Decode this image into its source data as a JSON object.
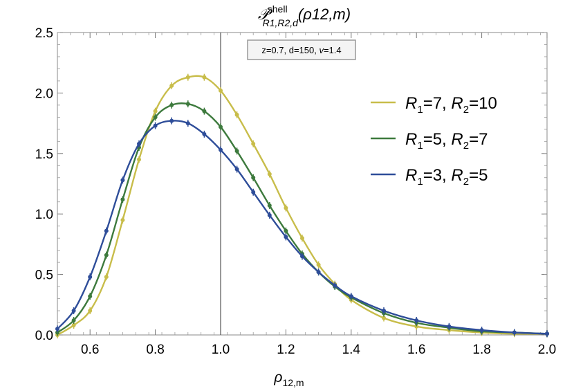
{
  "chart_data": {
    "type": "line",
    "title_parts": {
      "symbol": "𝒫",
      "superscript": "shell",
      "subscript": "R1,R2,d",
      "argument": "(ρ12,m)"
    },
    "xlabel": {
      "main": "ρ",
      "sub": "12,m"
    },
    "ylabel": "",
    "xlim": [
      0.5,
      2.0
    ],
    "ylim": [
      0.0,
      2.5
    ],
    "x_ticks": [
      0.6,
      0.8,
      1.0,
      1.2,
      1.4,
      1.6,
      1.8,
      2.0
    ],
    "x_tick_labels": [
      "0.6",
      "0.8",
      "1.0",
      "1.2",
      "1.4",
      "1.6",
      "1.8",
      "2.0"
    ],
    "y_ticks": [
      0.0,
      0.5,
      1.0,
      1.5,
      2.0,
      2.5
    ],
    "y_tick_labels": [
      "0.0",
      "0.5",
      "1.0",
      "1.5",
      "2.0",
      "2.5"
    ],
    "reference_line_x": 1.0,
    "annotation": {
      "text": "z=0.7, d=150, ",
      "italic_part": "v",
      "tail": "=1.4"
    },
    "legend_position": "right",
    "grid": false,
    "series": [
      {
        "name": "R1=7, R2=10",
        "legend_parts": [
          "R",
          "1",
          "=7, ",
          "R",
          "2",
          "=10"
        ],
        "color": "#c8bd4a",
        "x": [
          0.5,
          0.55,
          0.6,
          0.65,
          0.7,
          0.75,
          0.8,
          0.85,
          0.9,
          0.95,
          1.0,
          1.05,
          1.1,
          1.15,
          1.2,
          1.25,
          1.3,
          1.35,
          1.4,
          1.5,
          1.6,
          1.7,
          1.8,
          1.9,
          2.0
        ],
        "y": [
          0.0,
          0.08,
          0.2,
          0.48,
          0.95,
          1.45,
          1.85,
          2.06,
          2.13,
          2.13,
          2.02,
          1.82,
          1.58,
          1.33,
          1.05,
          0.8,
          0.58,
          0.42,
          0.29,
          0.14,
          0.07,
          0.04,
          0.02,
          0.01,
          0.01
        ]
      },
      {
        "name": "R1=5, R2=7",
        "legend_parts": [
          "R",
          "1",
          "=5, ",
          "R",
          "2",
          "=7"
        ],
        "color": "#3d7a3d",
        "x": [
          0.5,
          0.55,
          0.6,
          0.65,
          0.7,
          0.75,
          0.8,
          0.85,
          0.9,
          0.95,
          1.0,
          1.05,
          1.1,
          1.15,
          1.2,
          1.25,
          1.3,
          1.35,
          1.4,
          1.5,
          1.6,
          1.7,
          1.8,
          1.9,
          2.0
        ],
        "y": [
          0.02,
          0.12,
          0.32,
          0.66,
          1.12,
          1.55,
          1.8,
          1.9,
          1.91,
          1.85,
          1.72,
          1.52,
          1.3,
          1.07,
          0.86,
          0.67,
          0.52,
          0.4,
          0.31,
          0.18,
          0.1,
          0.06,
          0.03,
          0.02,
          0.01
        ]
      },
      {
        "name": "R1=3, R2=5",
        "legend_parts": [
          "R",
          "1",
          "=3, ",
          "R",
          "2",
          "=5"
        ],
        "color": "#2e4d99",
        "x": [
          0.5,
          0.55,
          0.6,
          0.65,
          0.7,
          0.75,
          0.8,
          0.85,
          0.9,
          0.95,
          1.0,
          1.05,
          1.1,
          1.15,
          1.2,
          1.25,
          1.3,
          1.35,
          1.4,
          1.5,
          1.6,
          1.7,
          1.8,
          1.9,
          2.0
        ],
        "y": [
          0.05,
          0.2,
          0.48,
          0.86,
          1.28,
          1.58,
          1.73,
          1.77,
          1.75,
          1.66,
          1.53,
          1.37,
          1.18,
          0.99,
          0.81,
          0.65,
          0.52,
          0.41,
          0.32,
          0.2,
          0.12,
          0.07,
          0.04,
          0.02,
          0.01
        ]
      }
    ]
  }
}
